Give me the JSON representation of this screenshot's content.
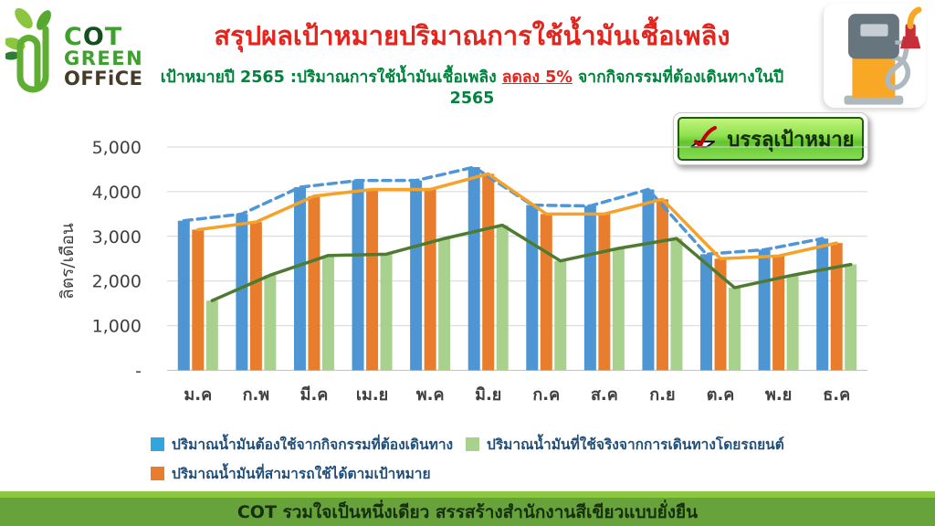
{
  "logo": {
    "cot_c": "C",
    "cot_o": "O",
    "cot_t": "T",
    "green": "GREEN",
    "office": "OFFiCE"
  },
  "header": {
    "title": "สรุปผลเป้าหมายปริมาณการใช้น้ำมันเชื้อเพลิง",
    "subtitle_prefix": "เป้าหมายปี 2565 :ปริมาณการใช้น้ำมันเชื้อเพลิง ",
    "subtitle_highlight": "ลดลง 5%",
    "subtitle_suffix": " จากกิจกรรมที่ต้องเดินทางในปี 2565"
  },
  "badge": {
    "label": "บรรลุเป้าหมาย"
  },
  "chart_data": {
    "type": "bar",
    "title": "",
    "xlabel": "",
    "ylabel": "ลิตร/เดือน",
    "ylim": [
      0,
      5000
    ],
    "ytick_step": 1000,
    "ytick_labels_top_to_bottom": [
      "5,000",
      "4,000",
      "3,000",
      "2,000",
      "1,000",
      "-"
    ],
    "grid": true,
    "legend_position": "bottom",
    "categories": [
      "ม.ค",
      "ก.พ",
      "มี.ค",
      "เม.ย",
      "พ.ค",
      "มิ.ย",
      "ก.ค",
      "ส.ค",
      "ก.ย",
      "ต.ค",
      "พ.ย",
      "ธ.ค"
    ],
    "series": [
      {
        "name": "ปริมาณน้ำมันต้องใช้จากกิจกรรมที่ต้องเดินทาง",
        "bar_color": "#4e96d3",
        "line_color": "#4e96d8",
        "line_style": "dashed",
        "values": [
          3350,
          3500,
          4100,
          4250,
          4250,
          4550,
          3700,
          3680,
          4050,
          2600,
          2700,
          2950
        ]
      },
      {
        "name": "ปริมาณน้ำมันที่สามารถใช้ได้ตามเป้าหมาย",
        "bar_color": "#e87e2d",
        "line_color": "#f5a22b",
        "line_style": "solid",
        "values": [
          3150,
          3320,
          3900,
          4050,
          4050,
          4400,
          3500,
          3500,
          3830,
          2500,
          2560,
          2850
        ]
      },
      {
        "name": "ปริมาณน้ำมันที่ใช้จริงจากการเดินทางโดยรถยนต์",
        "bar_color": "#a9d18e",
        "line_color": "#4e7b31",
        "line_style": "solid",
        "values": [
          1560,
          2130,
          2570,
          2600,
          2950,
          3250,
          2450,
          2730,
          2950,
          1850,
          2130,
          2370
        ]
      }
    ]
  },
  "legend": {
    "items": [
      {
        "label": "ปริมาณน้ำมันต้องใช้จากกิจกรรมที่ต้องเดินทาง",
        "color": "#31a5de"
      },
      {
        "label": "ปริมาณน้ำมันที่ใช้จริงจากการเดินทางโดยรถยนต์",
        "color": "#a9d18e"
      },
      {
        "label": "ปริมาณน้ำมันที่สามารถใช้ได้ตามเป้าหมาย",
        "color": "#e87e2d"
      }
    ]
  },
  "footer": {
    "text": "COT รวมใจเป็นหนึ่งเดียว สรรสร้างสำนักงานสีเขียวแบบยั่งยืน"
  },
  "colors": {
    "title": "#e3251d",
    "subtitle": "#00843d",
    "grid": "#d6d6d6",
    "axis_text": "#404040",
    "footer_strip": "#8dc63f",
    "footer_bar": "#67a23b",
    "badge_green": "#8fe14f"
  }
}
